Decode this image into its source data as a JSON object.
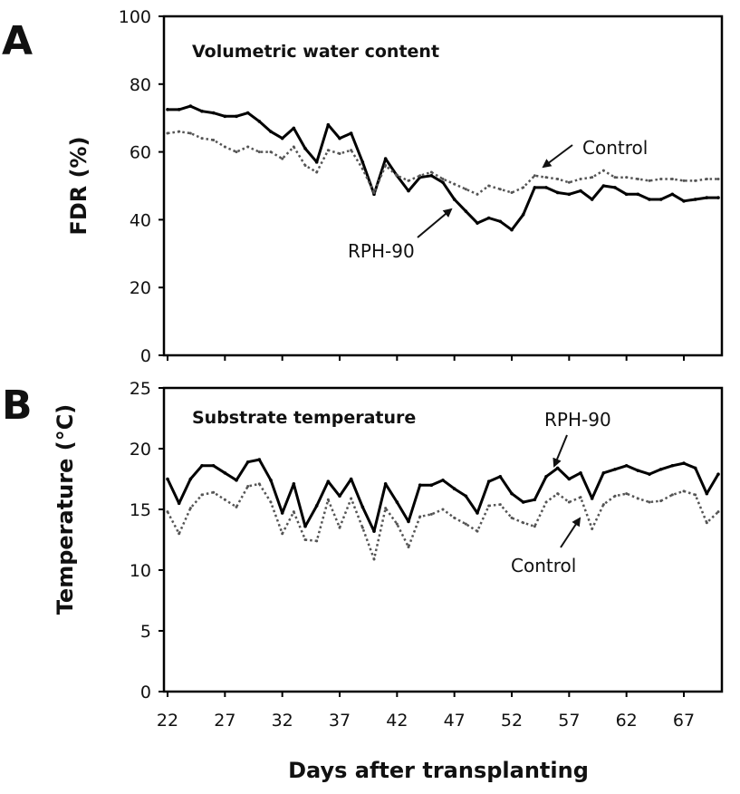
{
  "figure": {
    "xlabel": "Days after transplanting"
  },
  "chart_data": [
    {
      "panel": "A",
      "type": "line",
      "title": "Volumetric water content",
      "ylabel": "FDR (%)",
      "xlabel": "Days after transplanting",
      "xlim": [
        22,
        70
      ],
      "ylim": [
        0,
        100
      ],
      "xticks": [
        22,
        27,
        32,
        37,
        42,
        47,
        52,
        57,
        62,
        67
      ],
      "yticks": [
        0,
        20,
        40,
        60,
        80,
        100
      ],
      "grid": false,
      "x": [
        22,
        23,
        24,
        25,
        26,
        27,
        28,
        29,
        30,
        31,
        32,
        33,
        34,
        35,
        36,
        37,
        38,
        39,
        40,
        41,
        42,
        43,
        44,
        45,
        46,
        47,
        48,
        49,
        50,
        51,
        52,
        53,
        54,
        55,
        56,
        57,
        58,
        59,
        60,
        61,
        62,
        63,
        64,
        65,
        66,
        67,
        68,
        69,
        70
      ],
      "series": [
        {
          "name": "RPH-90",
          "style": "solid",
          "color": "#000000",
          "values": [
            72.5,
            72.5,
            73.5,
            72,
            71.5,
            70.5,
            70.5,
            71.5,
            69,
            66,
            64,
            67,
            61,
            57,
            68,
            64,
            65.5,
            57,
            47.5,
            58,
            53,
            48.5,
            52.5,
            53,
            51,
            46,
            42.5,
            39,
            40.5,
            39.5,
            37,
            41.5,
            49.5,
            49.5,
            48,
            47.5,
            48.5,
            46,
            50,
            49.5,
            47.5,
            47.5,
            46,
            46,
            47.5,
            45.5,
            46,
            46.5,
            46.5
          ]
        },
        {
          "name": "Control",
          "style": "dotted",
          "color": "#555555",
          "values": [
            65.5,
            66,
            65.5,
            64,
            63.5,
            61.5,
            60,
            61.5,
            60,
            60,
            58,
            61.5,
            56,
            54,
            60.5,
            59.5,
            60.5,
            55,
            48,
            56,
            53,
            51.5,
            53,
            54,
            52,
            50.5,
            49,
            47.5,
            50,
            49,
            48,
            49.5,
            53,
            52.5,
            52,
            51,
            52,
            52.5,
            54.5,
            52.5,
            52.5,
            52,
            51.5,
            52,
            52,
            51.5,
            51.5,
            52,
            52
          ]
        }
      ],
      "annotations": [
        "Control",
        "RPH-90"
      ]
    },
    {
      "panel": "B",
      "type": "line",
      "title": "Substrate temperature",
      "ylabel": "Temperature (°C)",
      "xlabel": "Days after transplanting",
      "xlim": [
        22,
        70
      ],
      "ylim": [
        0,
        25
      ],
      "xticks": [
        22,
        27,
        32,
        37,
        42,
        47,
        52,
        57,
        62,
        67
      ],
      "yticks": [
        0,
        5,
        10,
        15,
        20,
        25
      ],
      "grid": false,
      "x": [
        22,
        23,
        24,
        25,
        26,
        27,
        28,
        29,
        30,
        31,
        32,
        33,
        34,
        35,
        36,
        37,
        38,
        39,
        40,
        41,
        42,
        43,
        44,
        45,
        46,
        47,
        48,
        49,
        50,
        51,
        52,
        53,
        54,
        55,
        56,
        57,
        58,
        59,
        60,
        61,
        62,
        63,
        64,
        65,
        66,
        67,
        68,
        69,
        70
      ],
      "series": [
        {
          "name": "RPH-90",
          "style": "solid",
          "color": "#000000",
          "values": [
            17.5,
            15.5,
            17.5,
            18.6,
            18.6,
            18,
            17.4,
            18.9,
            19.1,
            17.4,
            14.7,
            17.1,
            13.6,
            15.3,
            17.3,
            16.1,
            17.5,
            15.2,
            13.2,
            17.1,
            15.6,
            14,
            17,
            17,
            17.4,
            16.7,
            16.1,
            14.7,
            17.3,
            17.7,
            16.3,
            15.6,
            15.8,
            17.7,
            18.4,
            17.5,
            18,
            15.9,
            18,
            18.3,
            18.6,
            18.2,
            17.9,
            18.3,
            18.6,
            18.8,
            18.4,
            16.3,
            17.9
          ]
        },
        {
          "name": "Control",
          "style": "dotted",
          "color": "#555555",
          "values": [
            14.8,
            13,
            15.1,
            16.2,
            16.4,
            15.8,
            15.2,
            16.9,
            17.1,
            15.6,
            13,
            14.8,
            12.5,
            12.4,
            15.8,
            13.5,
            15.9,
            13.5,
            10.9,
            15.1,
            13.8,
            11.9,
            14.4,
            14.6,
            15,
            14.3,
            13.8,
            13.2,
            15.3,
            15.4,
            14.3,
            13.9,
            13.6,
            15.6,
            16.3,
            15.6,
            16,
            13.4,
            15.4,
            16.1,
            16.3,
            15.9,
            15.6,
            15.7,
            16.2,
            16.5,
            16.2,
            13.9,
            14.8
          ]
        }
      ],
      "annotations": [
        "RPH-90",
        "Control"
      ]
    }
  ]
}
